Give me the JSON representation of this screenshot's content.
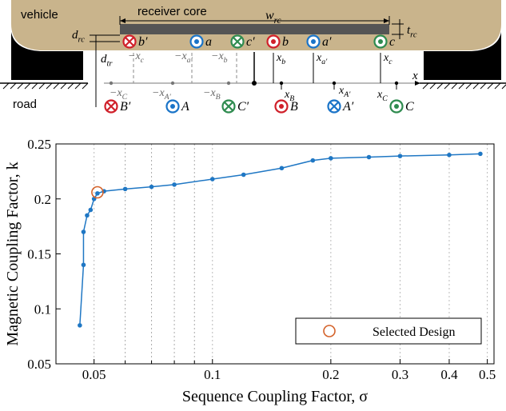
{
  "diagram": {
    "vehicle": "vehicle",
    "road": "road",
    "core_label": "receiver core",
    "axis_label": "x",
    "dims": [
      {
        "text": "w",
        "sub": "rc"
      },
      {
        "text": "t",
        "sub": "rc"
      },
      {
        "text": "d",
        "sub": "rc"
      },
      {
        "text": "d",
        "sub": "tr"
      }
    ],
    "top_conductors": [
      "b′",
      "a",
      "c′",
      "b",
      "a′",
      "c"
    ],
    "bottom_conductors": [
      "B′",
      "A",
      "C′",
      "B",
      "A′",
      "C"
    ],
    "top_positions": [
      {
        "text": "−x",
        "sub": "c"
      },
      {
        "text": "−x",
        "sub": "a′"
      },
      {
        "text": "−x",
        "sub": "b"
      },
      {
        "text": "x",
        "sub": "b"
      },
      {
        "text": "x",
        "sub": "a′"
      },
      {
        "text": "x",
        "sub": "c"
      }
    ],
    "bottom_positions": [
      {
        "text": "−x",
        "sub": "C"
      },
      {
        "text": "−x",
        "sub": "A′"
      },
      {
        "text": "−x",
        "sub": "B"
      },
      {
        "text": "x",
        "sub": "B"
      },
      {
        "text": "x",
        "sub": "A′"
      },
      {
        "text": "x",
        "sub": "C"
      }
    ]
  },
  "chart_data": {
    "type": "line",
    "xlabel": "Sequence Coupling Factor, σ",
    "ylabel": "Magnetic Coupling Factor, k",
    "x": [
      0.046,
      0.047,
      0.047,
      0.048,
      0.049,
      0.05,
      0.051,
      0.053,
      0.06,
      0.07,
      0.08,
      0.1,
      0.12,
      0.15,
      0.18,
      0.2,
      0.25,
      0.3,
      0.4,
      0.48
    ],
    "values": [
      0.085,
      0.14,
      0.17,
      0.185,
      0.19,
      0.2,
      0.205,
      0.207,
      0.209,
      0.211,
      0.213,
      0.218,
      0.222,
      0.228,
      0.235,
      0.237,
      0.238,
      0.239,
      0.24,
      0.241
    ],
    "color": "#1f77c4",
    "highlight": {
      "name": "Selected Design",
      "x": 0.051,
      "y": 0.206,
      "color": "#d4622a"
    },
    "xscale": "log",
    "xlim": [
      0.04,
      0.52
    ],
    "xticks": [
      0.05,
      0.1,
      0.2,
      0.3,
      0.4,
      0.5
    ],
    "xminorticks": [
      0.06,
      0.07,
      0.08,
      0.09
    ],
    "ylim": [
      0.05,
      0.25
    ],
    "yticks": [
      0.05,
      0.1,
      0.15,
      0.2,
      0.25
    ],
    "grid": true,
    "legend": "lower right"
  }
}
